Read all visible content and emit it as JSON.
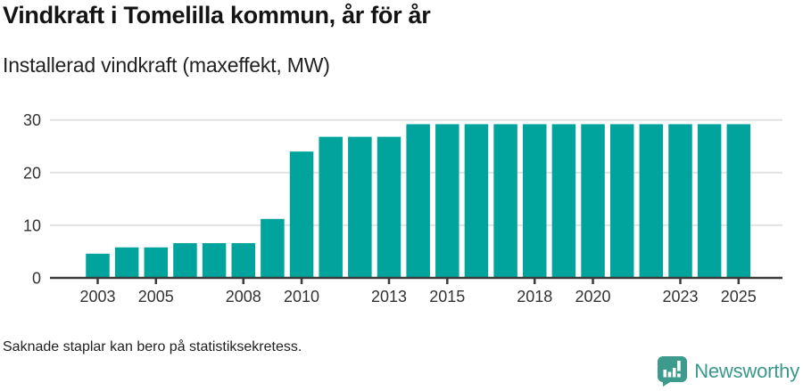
{
  "chart_data": {
    "type": "bar",
    "title": "Vindkraft i Tomelilla kommun, år för år",
    "subtitle": "Installerad vindkraft (maxeffekt, MW)",
    "ylabel": "MW",
    "xlabel": "",
    "ylim": [
      0,
      30
    ],
    "y_ticks": [
      0,
      10,
      20,
      30
    ],
    "grid": "horizontal",
    "legend": "none",
    "categories": [
      2002,
      2003,
      2004,
      2005,
      2006,
      2007,
      2008,
      2009,
      2010,
      2011,
      2012,
      2013,
      2014,
      2015,
      2016,
      2017,
      2018,
      2019,
      2020,
      2021,
      2022,
      2023,
      2024,
      2025
    ],
    "values": [
      null,
      4.6,
      5.8,
      5.8,
      6.6,
      6.6,
      6.6,
      11.2,
      24,
      26.8,
      26.8,
      26.8,
      29.2,
      29.2,
      29.2,
      29.2,
      29.2,
      29.2,
      29.2,
      29.2,
      29.2,
      29.2,
      29.2,
      29.2
    ],
    "x_tick_labels": [
      2003,
      2005,
      2008,
      2010,
      2013,
      2015,
      2018,
      2020,
      2023,
      2025
    ],
    "note": "Saknade staplar kan bero på statistiksekretess."
  },
  "footer": {
    "brand": "Newsworthy"
  },
  "colors": {
    "bar": "#00a49c",
    "grid": "#e2e2e2",
    "axis": "#3a3a3a",
    "tick_label": "#333333",
    "brand_teal": "#3d9b8e",
    "logo_mark_fg": "#ffffff"
  }
}
